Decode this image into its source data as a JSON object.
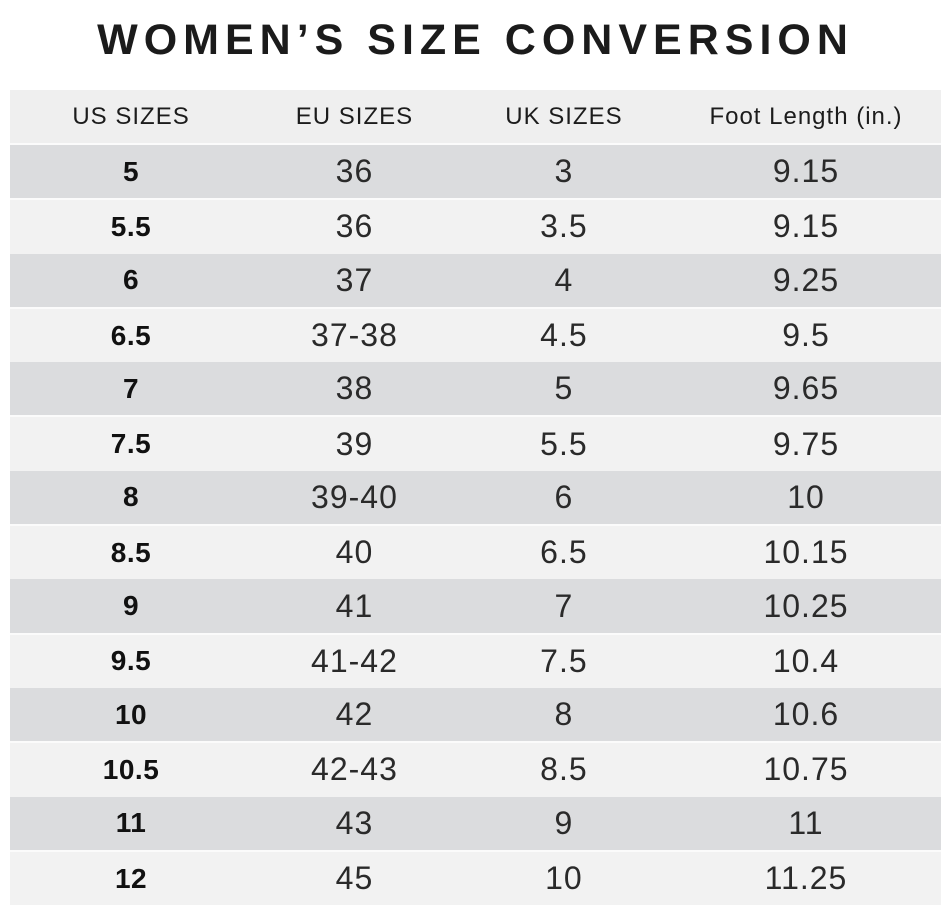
{
  "title": "WOMEN’S SIZE CONVERSION",
  "chart_data": {
    "type": "table",
    "title": "WOMEN’S SIZE CONVERSION",
    "columns": [
      "US SIZES",
      "EU SIZES",
      "UK SIZES",
      "Foot Length (in.)"
    ],
    "rows": [
      [
        "5",
        "36",
        "3",
        "9.15"
      ],
      [
        "5.5",
        "36",
        "3.5",
        "9.15"
      ],
      [
        "6",
        "37",
        "4",
        "9.25"
      ],
      [
        "6.5",
        "37-38",
        "4.5",
        "9.5"
      ],
      [
        "7",
        "38",
        "5",
        "9.65"
      ],
      [
        "7.5",
        "39",
        "5.5",
        "9.75"
      ],
      [
        "8",
        "39-40",
        "6",
        "10"
      ],
      [
        "8.5",
        "40",
        "6.5",
        "10.15"
      ],
      [
        "9",
        "41",
        "7",
        "10.25"
      ],
      [
        "9.5",
        "41-42",
        "7.5",
        "10.4"
      ],
      [
        "10",
        "42",
        "8",
        "10.6"
      ],
      [
        "10.5",
        "42-43",
        "8.5",
        "10.75"
      ],
      [
        "11",
        "43",
        "9",
        "11"
      ],
      [
        "12",
        "45",
        "10",
        "11.25"
      ]
    ]
  },
  "colors": {
    "row_dark": "#dbdcde",
    "row_light": "#f2f2f2",
    "header_bg": "#efefef",
    "title_text": "#1b1b1b"
  }
}
